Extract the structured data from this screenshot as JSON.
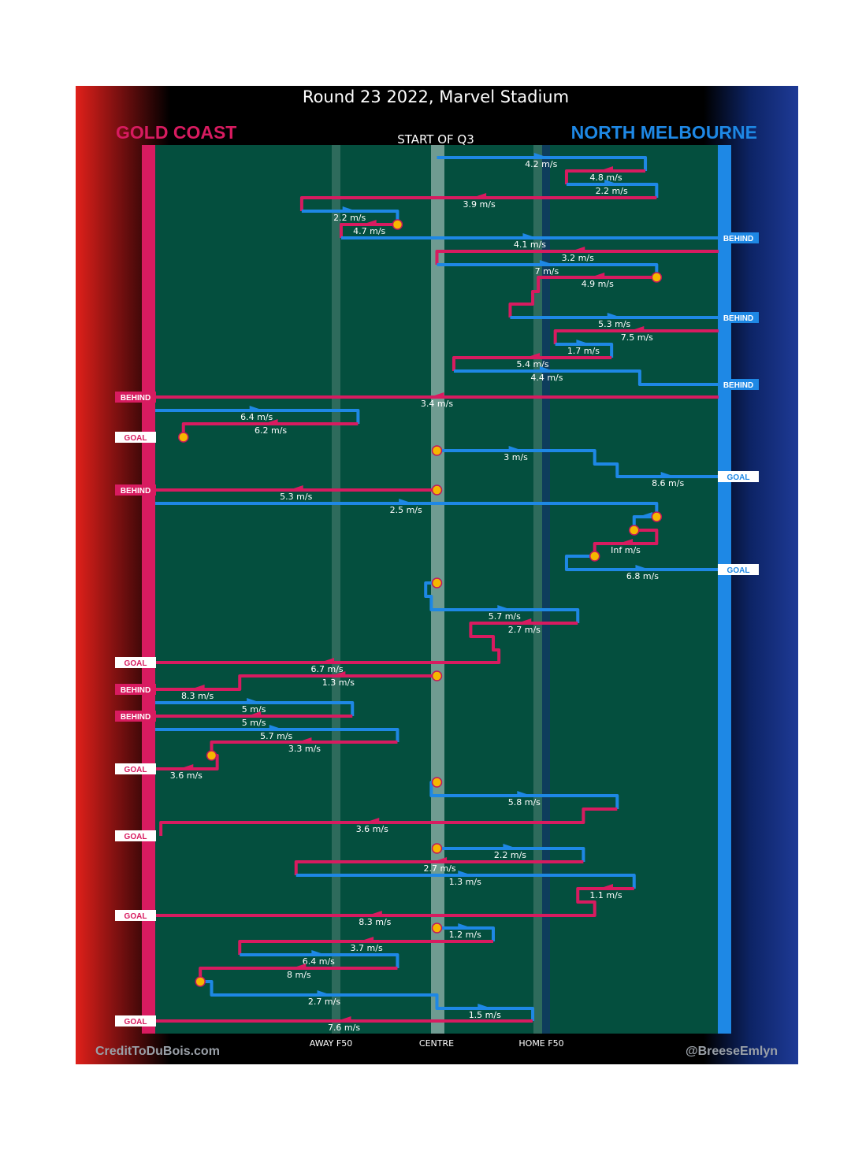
{
  "title": "Round 23 2022, Marvel Stadium",
  "subtitle": "START OF Q3",
  "teams": {
    "home": {
      "name": "NORTH MELBOURNE",
      "color": "#1e88e5"
    },
    "away": {
      "name": "GOLD COAST",
      "color": "#d81b60"
    }
  },
  "credits": {
    "left": "CreditToDuBois.com",
    "right": "@BreeseEmlyn"
  },
  "colors": {
    "field": "#044f3e",
    "ball": "#f5b700",
    "ball_ring": "#c2185b"
  },
  "chart_data": {
    "type": "line",
    "title": "Round 23 2022, Marvel Stadium",
    "x_axis": {
      "ticks": [
        "AWAY F50",
        "CENTRE",
        "HOME F50"
      ]
    },
    "note_x": "x = field position from GOLD COAST end (0) to NORTH MELBOURNE end (100); centre = 50",
    "chains": [
      {
        "team": "home",
        "path": [
          [
            50,
            200
          ],
          [
            87,
            200
          ],
          [
            87,
            217
          ]
        ],
        "label": "4.2 m/s"
      },
      {
        "team": "away",
        "path": [
          [
            87,
            217
          ],
          [
            73,
            217
          ],
          [
            73,
            234
          ]
        ],
        "label": "4.8 m/s"
      },
      {
        "team": "home",
        "path": [
          [
            73,
            234
          ],
          [
            89,
            234
          ],
          [
            89,
            251
          ]
        ],
        "label": "2.2 m/s"
      },
      {
        "team": "away",
        "path": [
          [
            89,
            251
          ],
          [
            26,
            251
          ],
          [
            26,
            268
          ]
        ],
        "label": "3.9 m/s"
      },
      {
        "team": "home",
        "path": [
          [
            26,
            268
          ],
          [
            43,
            268
          ],
          [
            43,
            285
          ]
        ],
        "label": "2.2 m/s",
        "ball_end": true
      },
      {
        "team": "away",
        "path": [
          [
            43,
            285
          ],
          [
            33,
            285
          ],
          [
            33,
            302
          ]
        ],
        "label": "4.7 m/s"
      },
      {
        "team": "home",
        "path": [
          [
            33,
            302
          ],
          [
            100,
            302
          ]
        ],
        "label": "4.1 m/s",
        "result": "BEHIND"
      },
      {
        "team": "away",
        "path": [
          [
            100,
            319
          ],
          [
            50,
            319
          ],
          [
            50,
            336
          ]
        ],
        "label": "3.2 m/s"
      },
      {
        "team": "home",
        "path": [
          [
            50,
            336
          ],
          [
            89,
            336
          ],
          [
            89,
            352
          ]
        ],
        "label": "7 m/s",
        "ball_end": true
      },
      {
        "team": "away",
        "path": [
          [
            89,
            352
          ],
          [
            68,
            352
          ],
          [
            68,
            370
          ],
          [
            67,
            370
          ],
          [
            67,
            386
          ],
          [
            63,
            386
          ],
          [
            63,
            403
          ]
        ],
        "label": "4.9 m/s"
      },
      {
        "team": "home",
        "path": [
          [
            63,
            403
          ],
          [
            100,
            403
          ]
        ],
        "label": "5.3 m/s",
        "result": "BEHIND"
      },
      {
        "team": "away",
        "path": [
          [
            100,
            420
          ],
          [
            71,
            420
          ],
          [
            71,
            437
          ]
        ],
        "label": "7.5 m/s"
      },
      {
        "team": "home",
        "path": [
          [
            71,
            437
          ],
          [
            81,
            437
          ],
          [
            81,
            454
          ]
        ],
        "label": "1.7 m/s"
      },
      {
        "team": "away",
        "path": [
          [
            81,
            454
          ],
          [
            53,
            454
          ],
          [
            53,
            471
          ]
        ],
        "label": "5.4 m/s"
      },
      {
        "team": "home",
        "path": [
          [
            53,
            471
          ],
          [
            86,
            471
          ],
          [
            86,
            488
          ],
          [
            100,
            488
          ]
        ],
        "label": "4.4 m/s",
        "result": "BEHIND"
      },
      {
        "team": "away",
        "path": [
          [
            100,
            504
          ],
          [
            0,
            504
          ]
        ],
        "label": "3.4 m/s",
        "result": "BEHIND"
      },
      {
        "team": "home",
        "path": [
          [
            0,
            521
          ],
          [
            36,
            521
          ],
          [
            36,
            538
          ]
        ],
        "label": "6.4 m/s"
      },
      {
        "team": "away",
        "path": [
          [
            36,
            538
          ],
          [
            5,
            538
          ],
          [
            5,
            555
          ]
        ],
        "label": "6.2 m/s",
        "ball_end": true,
        "result": "GOAL"
      },
      {
        "team": "home",
        "path": [
          [
            50,
            572
          ],
          [
            78,
            572
          ],
          [
            78,
            589
          ],
          [
            82,
            589
          ],
          [
            82,
            605
          ],
          [
            100,
            605
          ]
        ],
        "label": "3 m/s",
        "label2": "8.6 m/s",
        "result": "GOAL",
        "ball_start": true
      },
      {
        "team": "away",
        "path": [
          [
            50,
            622
          ],
          [
            0,
            622
          ]
        ],
        "label": "5.3 m/s",
        "result": "BEHIND",
        "ball_start": true
      },
      {
        "team": "home",
        "path": [
          [
            0,
            639
          ],
          [
            89,
            639
          ],
          [
            89,
            656
          ]
        ],
        "label": "2.5 m/s",
        "ball_end": true
      },
      {
        "team": "home",
        "path": [
          [
            89,
            656
          ],
          [
            85,
            656
          ],
          [
            85,
            673
          ]
        ],
        "label": "",
        "ball_end": true
      },
      {
        "team": "away",
        "path": [
          [
            85,
            673
          ],
          [
            89,
            673
          ],
          [
            89,
            690
          ],
          [
            78,
            690
          ],
          [
            78,
            706
          ]
        ],
        "label": "Inf m/s",
        "ball_end": true
      },
      {
        "team": "home",
        "path": [
          [
            78,
            706
          ],
          [
            73,
            706
          ],
          [
            73,
            723
          ],
          [
            100,
            723
          ]
        ],
        "label": "6.8 m/s",
        "result": "GOAL"
      },
      {
        "team": "home",
        "path": [
          [
            50,
            740
          ],
          [
            48,
            740
          ],
          [
            48,
            757
          ],
          [
            49,
            757
          ],
          [
            49,
            774
          ],
          [
            75,
            774
          ],
          [
            75,
            791
          ]
        ],
        "label": "5.7 m/s",
        "ball_start": true
      },
      {
        "team": "away",
        "path": [
          [
            75,
            791
          ],
          [
            56,
            791
          ],
          [
            56,
            808
          ],
          [
            60,
            808
          ],
          [
            60,
            825
          ],
          [
            61,
            825
          ],
          [
            61,
            841
          ],
          [
            0,
            841
          ]
        ],
        "label": "2.7 m/s",
        "label2": "6.7 m/s",
        "result": "GOAL"
      },
      {
        "team": "away",
        "path": [
          [
            50,
            858
          ],
          [
            15,
            858
          ],
          [
            15,
            875
          ],
          [
            0,
            875
          ]
        ],
        "label": "1.3 m/s",
        "label2": "8.3 m/s",
        "result": "BEHIND",
        "ball_start": true
      },
      {
        "team": "home",
        "path": [
          [
            0,
            892
          ],
          [
            35,
            892
          ],
          [
            35,
            909
          ]
        ],
        "label": "5 m/s"
      },
      {
        "team": "away",
        "path": [
          [
            35,
            909
          ],
          [
            0,
            909
          ]
        ],
        "label": "5 m/s",
        "result": "BEHIND"
      },
      {
        "team": "home",
        "path": [
          [
            0,
            926
          ],
          [
            43,
            926
          ],
          [
            43,
            942
          ]
        ],
        "label": "5.7 m/s"
      },
      {
        "team": "away",
        "path": [
          [
            43,
            942
          ],
          [
            10,
            942
          ],
          [
            10,
            959
          ]
        ],
        "label": "3.3 m/s",
        "ball_end": true
      },
      {
        "team": "away",
        "path": [
          [
            10,
            959
          ],
          [
            11,
            959
          ],
          [
            11,
            976
          ],
          [
            0,
            976
          ]
        ],
        "label": "3.6 m/s",
        "result": "GOAL"
      },
      {
        "team": "home",
        "path": [
          [
            50,
            993
          ],
          [
            49,
            993
          ],
          [
            49,
            1010
          ],
          [
            82,
            1010
          ],
          [
            82,
            1027
          ]
        ],
        "label": "5.8 m/s",
        "ball_start": true
      },
      {
        "team": "away",
        "path": [
          [
            82,
            1027
          ],
          [
            76,
            1027
          ],
          [
            76,
            1044
          ],
          [
            1,
            1044
          ],
          [
            1,
            1061
          ]
        ],
        "label": "3.6 m/s",
        "result": "GOAL"
      },
      {
        "team": "home",
        "path": [
          [
            50,
            1077
          ],
          [
            76,
            1077
          ],
          [
            76,
            1094
          ]
        ],
        "label": "2.2 m/s",
        "ball_start": true
      },
      {
        "team": "away",
        "path": [
          [
            76,
            1094
          ],
          [
            25,
            1094
          ],
          [
            25,
            1111
          ]
        ],
        "label": "2.7 m/s"
      },
      {
        "team": "home",
        "path": [
          [
            25,
            1111
          ],
          [
            85,
            1111
          ],
          [
            85,
            1128
          ]
        ],
        "label": "1.3 m/s"
      },
      {
        "team": "away",
        "path": [
          [
            85,
            1128
          ],
          [
            75,
            1128
          ],
          [
            75,
            1145
          ],
          [
            78,
            1145
          ],
          [
            78,
            1162
          ],
          [
            0,
            1162
          ]
        ],
        "label": "1.1 m/s",
        "label2": "8.3 m/s",
        "result": "GOAL"
      },
      {
        "team": "home",
        "path": [
          [
            50,
            1178
          ],
          [
            60,
            1178
          ],
          [
            60,
            1195
          ]
        ],
        "label": "1.2 m/s",
        "ball_start": true
      },
      {
        "team": "away",
        "path": [
          [
            60,
            1195
          ],
          [
            15,
            1195
          ],
          [
            15,
            1212
          ]
        ],
        "label": "3.7 m/s"
      },
      {
        "team": "home",
        "path": [
          [
            15,
            1212
          ],
          [
            43,
            1212
          ],
          [
            43,
            1229
          ]
        ],
        "label": "6.4 m/s"
      },
      {
        "team": "away",
        "path": [
          [
            43,
            1229
          ],
          [
            8,
            1229
          ],
          [
            8,
            1246
          ]
        ],
        "label": "8 m/s",
        "ball_end": true
      },
      {
        "team": "home",
        "path": [
          [
            8,
            1246
          ],
          [
            10,
            1246
          ],
          [
            10,
            1263
          ],
          [
            50,
            1263
          ],
          [
            50,
            1280
          ],
          [
            67,
            1280
          ],
          [
            67,
            1296
          ]
        ],
        "label": "2.7 m/s",
        "label2": "1.5 m/s"
      },
      {
        "team": "away",
        "path": [
          [
            67,
            1296
          ],
          [
            0,
            1296
          ]
        ],
        "label": "7.6 m/s",
        "result": "GOAL"
      }
    ]
  }
}
